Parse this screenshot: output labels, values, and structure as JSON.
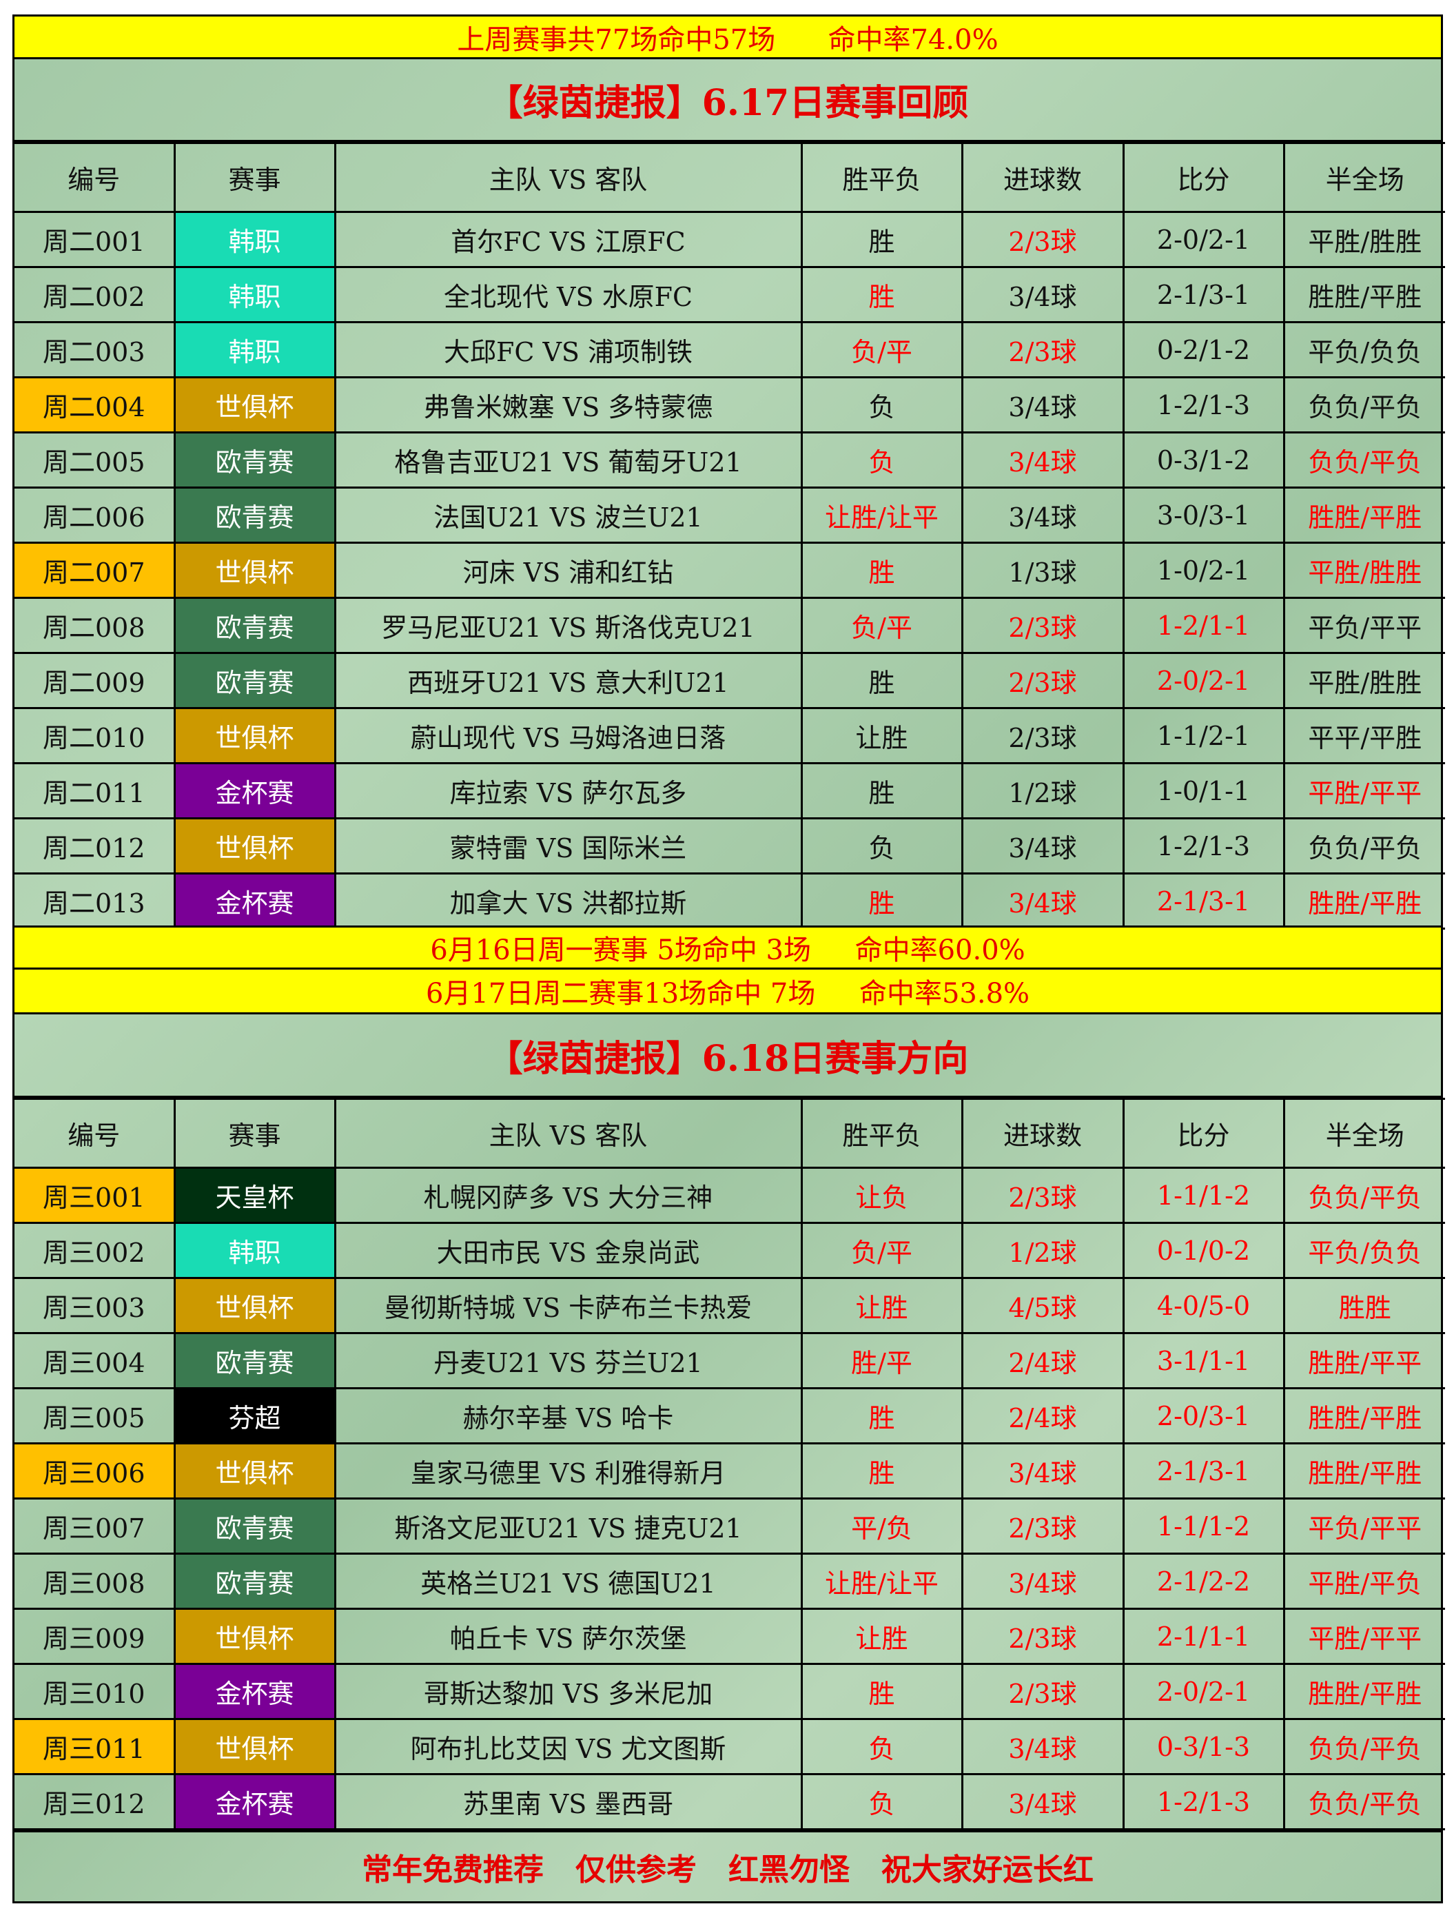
{
  "top_banner": "上周赛事共77场命中57场      命中率74.0%",
  "section1": {
    "title": "【绿茵捷报】6.17日赛事回顾",
    "headers": [
      "编号",
      "赛事",
      "主队 VS 客队",
      "胜平负",
      "进球数",
      "比分",
      "半全场"
    ],
    "rows": [
      {
        "id": "周二001",
        "comp": "韩职",
        "match": "首尔FC VS 江原FC",
        "wdl": "胜",
        "goals": "2/3球",
        "score": "2-0/2-1",
        "htft": "平胜/胜胜",
        "red": [
          0,
          1,
          0,
          0
        ],
        "id_hl": false
      },
      {
        "id": "周二002",
        "comp": "韩职",
        "match": "全北现代 VS 水原FC",
        "wdl": "胜",
        "goals": "3/4球",
        "score": "2-1/3-1",
        "htft": "胜胜/平胜",
        "red": [
          1,
          0,
          0,
          0
        ],
        "id_hl": false
      },
      {
        "id": "周二003",
        "comp": "韩职",
        "match": "大邱FC VS 浦项制铁",
        "wdl": "负/平",
        "goals": "2/3球",
        "score": "0-2/1-2",
        "htft": "平负/负负",
        "red": [
          1,
          1,
          0,
          0
        ],
        "id_hl": false
      },
      {
        "id": "周二004",
        "comp": "世俱杯",
        "match": "弗鲁米嫩塞 VS 多特蒙德",
        "wdl": "负",
        "goals": "3/4球",
        "score": "1-2/1-3",
        "htft": "负负/平负",
        "red": [
          0,
          0,
          0,
          0
        ],
        "id_hl": true
      },
      {
        "id": "周二005",
        "comp": "欧青赛",
        "match": "格鲁吉亚U21 VS 葡萄牙U21",
        "wdl": "负",
        "goals": "3/4球",
        "score": "0-3/1-2",
        "htft": "负负/平负",
        "red": [
          1,
          1,
          0,
          1
        ],
        "id_hl": false
      },
      {
        "id": "周二006",
        "comp": "欧青赛",
        "match": "法国U21 VS 波兰U21",
        "wdl": "让胜/让平",
        "goals": "3/4球",
        "score": "3-0/3-1",
        "htft": "胜胜/平胜",
        "red": [
          1,
          0,
          0,
          1
        ],
        "id_hl": false
      },
      {
        "id": "周二007",
        "comp": "世俱杯",
        "match": "河床 VS 浦和红钻",
        "wdl": "胜",
        "goals": "1/3球",
        "score": "1-0/2-1",
        "htft": "平胜/胜胜",
        "red": [
          1,
          0,
          0,
          1
        ],
        "id_hl": true
      },
      {
        "id": "周二008",
        "comp": "欧青赛",
        "match": "罗马尼亚U21 VS 斯洛伐克U21",
        "wdl": "负/平",
        "goals": "2/3球",
        "score": "1-2/1-1",
        "htft": "平负/平平",
        "red": [
          1,
          1,
          1,
          0
        ],
        "id_hl": false
      },
      {
        "id": "周二009",
        "comp": "欧青赛",
        "match": "西班牙U21 VS 意大利U21",
        "wdl": "胜",
        "goals": "2/3球",
        "score": "2-0/2-1",
        "htft": "平胜/胜胜",
        "red": [
          0,
          1,
          1,
          0
        ],
        "id_hl": false
      },
      {
        "id": "周二010",
        "comp": "世俱杯",
        "match": "蔚山现代 VS 马姆洛迪日落",
        "wdl": "让胜",
        "goals": "2/3球",
        "score": "1-1/2-1",
        "htft": "平平/平胜",
        "red": [
          0,
          0,
          0,
          0
        ],
        "id_hl": false
      },
      {
        "id": "周二011",
        "comp": "金杯赛",
        "match": "库拉索 VS 萨尔瓦多",
        "wdl": "胜",
        "goals": "1/2球",
        "score": "1-0/1-1",
        "htft": "平胜/平平",
        "red": [
          0,
          0,
          0,
          1
        ],
        "id_hl": false
      },
      {
        "id": "周二012",
        "comp": "世俱杯",
        "match": "蒙特雷 VS 国际米兰",
        "wdl": "负",
        "goals": "3/4球",
        "score": "1-2/1-3",
        "htft": "负负/平负",
        "red": [
          0,
          0,
          0,
          0
        ],
        "id_hl": false
      },
      {
        "id": "周二013",
        "comp": "金杯赛",
        "match": "加拿大 VS 洪都拉斯",
        "wdl": "胜",
        "goals": "3/4球",
        "score": "2-1/3-1",
        "htft": "胜胜/平胜",
        "red": [
          1,
          1,
          1,
          1
        ],
        "id_hl": false
      }
    ]
  },
  "summary": [
    "6月16日周一赛事 5场命中 3场     命中率60.0%",
    "6月17日周二赛事13场命中 7场     命中率53.8%"
  ],
  "section2": {
    "title": "【绿茵捷报】6.18日赛事方向",
    "headers": [
      "编号",
      "赛事",
      "主队 VS 客队",
      "胜平负",
      "进球数",
      "比分",
      "半全场"
    ],
    "rows": [
      {
        "id": "周三001",
        "comp": "天皇杯",
        "match": "札幌冈萨多 VS 大分三神",
        "wdl": "让负",
        "goals": "2/3球",
        "score": "1-1/1-2",
        "htft": "负负/平负",
        "red": [
          1,
          1,
          1,
          1
        ],
        "id_hl": true
      },
      {
        "id": "周三002",
        "comp": "韩职",
        "match": "大田市民 VS 金泉尚武",
        "wdl": "负/平",
        "goals": "1/2球",
        "score": "0-1/0-2",
        "htft": "平负/负负",
        "red": [
          1,
          1,
          1,
          1
        ],
        "id_hl": false
      },
      {
        "id": "周三003",
        "comp": "世俱杯",
        "match": "曼彻斯特城 VS 卡萨布兰卡热爱",
        "wdl": "让胜",
        "goals": "4/5球",
        "score": "4-0/5-0",
        "htft": "胜胜",
        "red": [
          1,
          1,
          1,
          1
        ],
        "id_hl": false
      },
      {
        "id": "周三004",
        "comp": "欧青赛",
        "match": "丹麦U21 VS 芬兰U21",
        "wdl": "胜/平",
        "goals": "2/4球",
        "score": "3-1/1-1",
        "htft": "胜胜/平平",
        "red": [
          1,
          1,
          1,
          1
        ],
        "id_hl": false
      },
      {
        "id": "周三005",
        "comp": "芬超",
        "match": "赫尔辛基 VS 哈卡",
        "wdl": "胜",
        "goals": "2/4球",
        "score": "2-0/3-1",
        "htft": "胜胜/平胜",
        "red": [
          1,
          1,
          1,
          1
        ],
        "id_hl": false
      },
      {
        "id": "周三006",
        "comp": "世俱杯",
        "match": "皇家马德里 VS 利雅得新月",
        "wdl": "胜",
        "goals": "3/4球",
        "score": "2-1/3-1",
        "htft": "胜胜/平胜",
        "red": [
          1,
          1,
          1,
          1
        ],
        "id_hl": true
      },
      {
        "id": "周三007",
        "comp": "欧青赛",
        "match": "斯洛文尼亚U21 VS 捷克U21",
        "wdl": "平/负",
        "goals": "2/3球",
        "score": "1-1/1-2",
        "htft": "平负/平平",
        "red": [
          1,
          1,
          1,
          1
        ],
        "id_hl": false
      },
      {
        "id": "周三008",
        "comp": "欧青赛",
        "match": "英格兰U21 VS 德国U21",
        "wdl": "让胜/让平",
        "goals": "3/4球",
        "score": "2-1/2-2",
        "htft": "平胜/平负",
        "red": [
          1,
          1,
          1,
          1
        ],
        "id_hl": false
      },
      {
        "id": "周三009",
        "comp": "世俱杯",
        "match": "帕丘卡 VS 萨尔茨堡",
        "wdl": "让胜",
        "goals": "2/3球",
        "score": "2-1/1-1",
        "htft": "平胜/平平",
        "red": [
          1,
          1,
          1,
          1
        ],
        "id_hl": false
      },
      {
        "id": "周三010",
        "comp": "金杯赛",
        "match": "哥斯达黎加 VS 多米尼加",
        "wdl": "胜",
        "goals": "2/3球",
        "score": "2-0/2-1",
        "htft": "胜胜/平胜",
        "red": [
          1,
          1,
          1,
          1
        ],
        "id_hl": false
      },
      {
        "id": "周三011",
        "comp": "世俱杯",
        "match": "阿布扎比艾因 VS 尤文图斯",
        "wdl": "负",
        "goals": "3/4球",
        "score": "0-3/1-3",
        "htft": "负负/平负",
        "red": [
          1,
          1,
          1,
          1
        ],
        "id_hl": true
      },
      {
        "id": "周三012",
        "comp": "金杯赛",
        "match": "苏里南 VS 墨西哥",
        "wdl": "负",
        "goals": "3/4球",
        "score": "1-2/1-3",
        "htft": "负负/平负",
        "red": [
          1,
          1,
          1,
          1
        ],
        "id_hl": false
      }
    ]
  },
  "footer": "常年免费推荐   仅供参考   红黑勿怪   祝大家好运长红",
  "colors": {
    "banner_bg": "#ffff00",
    "accent_red": "#e60000",
    "id_highlight": "#ffc000",
    "competition": {
      "韩职": "#19dcb4",
      "世俱杯": "#cc9900",
      "欧青赛": "#3a7a50",
      "金杯赛": "#7a0096",
      "天皇杯": "#003010",
      "芬超": "#000000"
    }
  }
}
